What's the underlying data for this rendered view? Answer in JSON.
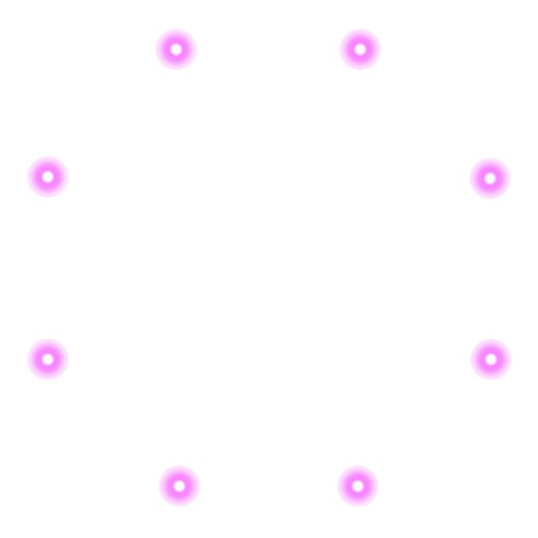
{
  "colors": {
    "background": "#ffffff",
    "dot_core": "#ffffff",
    "dot_glow": "#f56eff"
  },
  "dots": [
    {
      "name": "glow-dot-top-left"
    },
    {
      "name": "glow-dot-top-right"
    },
    {
      "name": "glow-dot-upper-left"
    },
    {
      "name": "glow-dot-upper-right"
    },
    {
      "name": "glow-dot-lower-left"
    },
    {
      "name": "glow-dot-lower-right"
    },
    {
      "name": "glow-dot-bottom-left"
    },
    {
      "name": "glow-dot-bottom-right"
    }
  ]
}
